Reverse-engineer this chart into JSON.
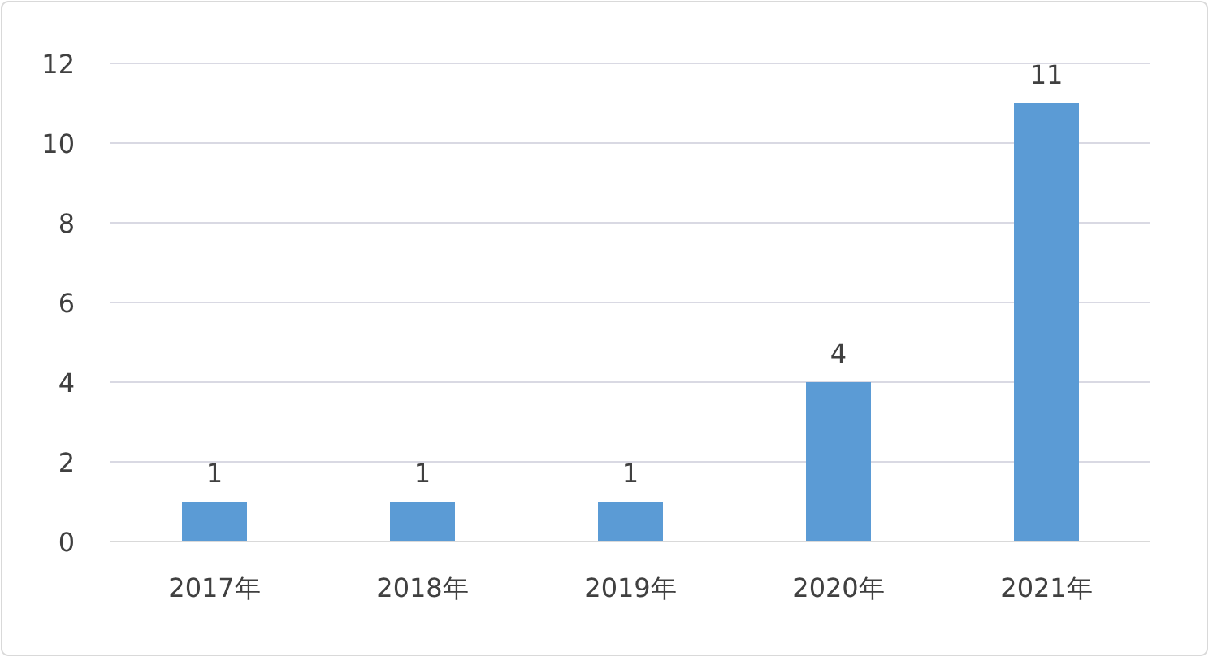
{
  "chart_data": {
    "type": "bar",
    "categories": [
      "2017年",
      "2018年",
      "2019年",
      "2020年",
      "2021年"
    ],
    "values": [
      1,
      1,
      1,
      4,
      11
    ],
    "color": "#5b9bd5",
    "ylim": [
      0,
      12
    ],
    "yticks": [
      0,
      2,
      4,
      6,
      8,
      10,
      12
    ],
    "grid": "y",
    "data_labels": true
  }
}
